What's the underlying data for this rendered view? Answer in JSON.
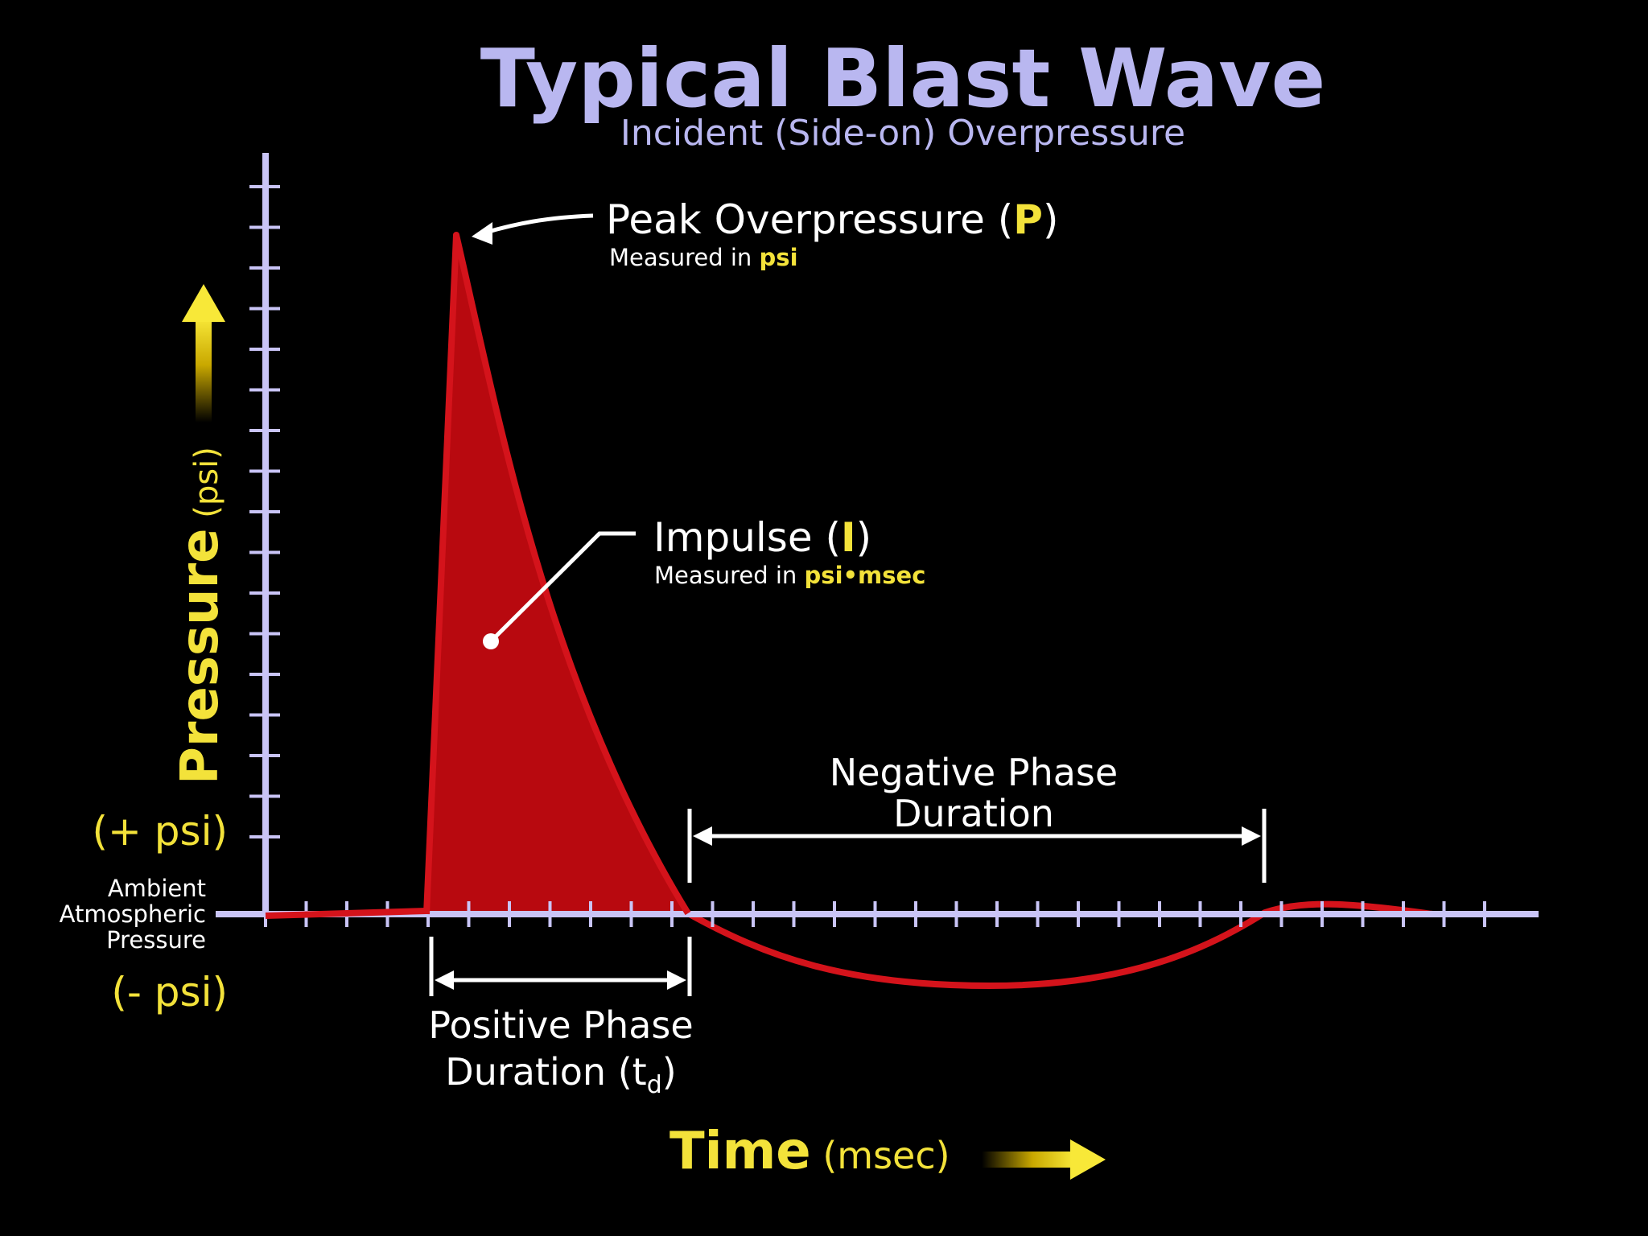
{
  "title": "Typical Blast Wave",
  "subtitle": "Incident (Side-on) Overpressure",
  "colors": {
    "background": "#000000",
    "axis": "#c9c4f6",
    "curve": "#d4131b",
    "fill": "#b8090f",
    "accent": "#f3e23a",
    "text": "#ffffff",
    "title": "#b9b7f0"
  },
  "y_axis": {
    "label": "Pressure",
    "unit": "(psi)",
    "arrow_icon": "arrow-up-icon"
  },
  "x_axis": {
    "label": "Time",
    "unit": "(msec)",
    "arrow_icon": "arrow-right-icon"
  },
  "side_labels": {
    "positive": "(+ psi)",
    "negative": "(- psi)",
    "ambient_line1": "Ambient",
    "ambient_line2": "Atmospheric",
    "ambient_line3": "Pressure"
  },
  "peak": {
    "label": "Peak Overpressure",
    "symbol": "(P)",
    "symbol_open": "(",
    "symbol_letter": "P",
    "symbol_close": ")",
    "note_prefix": "Measured in",
    "note_unit": "psi"
  },
  "impulse": {
    "label": "Impulse",
    "symbol": "(I)",
    "symbol_open": "(",
    "symbol_letter": "I",
    "symbol_close": ")",
    "note_prefix": "Measured in",
    "note_unit": "psi•msec"
  },
  "negative_phase": {
    "line1": "Negative Phase",
    "line2": "Duration"
  },
  "positive_phase": {
    "line1": "Positive Phase",
    "line2_prefix": "Duration (t",
    "line2_sub": "d",
    "line2_suffix": ")"
  }
}
